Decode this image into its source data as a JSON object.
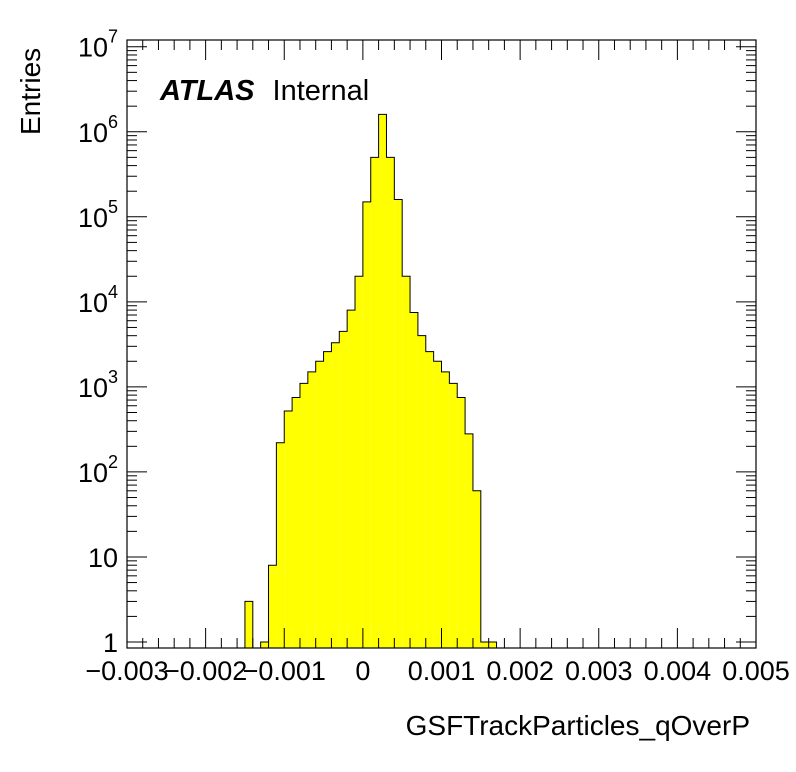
{
  "chart_data": {
    "type": "histogram",
    "title": "",
    "xlabel": "GSFTrackParticles_qOverP",
    "ylabel": "Entries",
    "xlim": [
      -0.003,
      0.005
    ],
    "ylim": [
      0.85,
      12000000
    ],
    "yscale": "log",
    "bin_width": 0.0001,
    "bin_start": -0.0015,
    "fill_color": "#ffff00",
    "line_color": "#000000",
    "x_tick_labels": [
      {
        "value": -0.003,
        "label": "−0.003"
      },
      {
        "value": -0.002,
        "label": "−0.002"
      },
      {
        "value": -0.001,
        "label": "−0.001"
      },
      {
        "value": 0,
        "label": "0"
      },
      {
        "value": 0.001,
        "label": "0.001"
      },
      {
        "value": 0.002,
        "label": "0.002"
      },
      {
        "value": 0.003,
        "label": "0.003"
      },
      {
        "value": 0.004,
        "label": "0.004"
      },
      {
        "value": 0.005,
        "label": "0.005"
      }
    ],
    "y_tick_labels": [
      {
        "value": 1,
        "base": "1",
        "exp": ""
      },
      {
        "value": 10,
        "base": "10",
        "exp": ""
      },
      {
        "value": 100,
        "base": "10",
        "exp": "2"
      },
      {
        "value": 1000,
        "base": "10",
        "exp": "3"
      },
      {
        "value": 10000,
        "base": "10",
        "exp": "4"
      },
      {
        "value": 100000,
        "base": "10",
        "exp": "5"
      },
      {
        "value": 1000000,
        "base": "10",
        "exp": "6"
      },
      {
        "value": 10000000,
        "base": "10",
        "exp": "7"
      }
    ],
    "values": [
      3,
      0,
      1,
      8,
      220,
      520,
      750,
      1100,
      1500,
      2000,
      2600,
      3300,
      4500,
      8000,
      20000,
      150000,
      500000,
      1600000,
      500000,
      160000,
      20000,
      7500,
      4000,
      2600,
      2000,
      1500,
      1100,
      750,
      280,
      60,
      1,
      1
    ],
    "annotation": {
      "bold": "ATLAS",
      "normal": "Internal"
    }
  }
}
